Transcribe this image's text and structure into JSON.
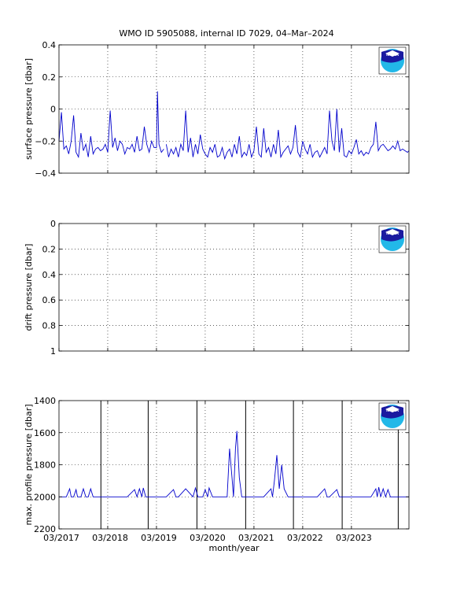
{
  "title": "WMO ID 5905088, internal ID 7029, 04–Mar–2024",
  "logo_text": "NOAA",
  "colors": {
    "series": "#0000cc",
    "axis": "#000000",
    "grid": "#000000",
    "logo_blue": "#1a1aa0",
    "logo_light": "#22b8e8"
  },
  "chart_data": [
    {
      "type": "line",
      "ylabel": "surface pressure [dbar]",
      "ylim": [
        -0.4,
        0.4
      ],
      "yticks": [
        "−0.4",
        "−0.2",
        "0",
        "0.2",
        "0.4"
      ],
      "ytick_values": [
        -0.4,
        -0.2,
        0,
        0.2,
        0.4
      ],
      "y_reversed": false,
      "grid": true,
      "series": [
        {
          "x": [
            2017.0,
            2017.05,
            2017.1,
            2017.15,
            2017.2,
            2017.25,
            2017.3,
            2017.35,
            2017.4,
            2017.45,
            2017.5,
            2017.55,
            2017.6,
            2017.65,
            2017.7,
            2017.75,
            2017.8,
            2017.85,
            2017.9,
            2017.95,
            2018.0,
            2018.05,
            2018.1,
            2018.15,
            2018.2,
            2018.25,
            2018.3,
            2018.35,
            2018.4,
            2018.45,
            2018.5,
            2018.55,
            2018.6,
            2018.65,
            2018.7,
            2018.75,
            2018.8,
            2018.85,
            2018.9,
            2018.95,
            2019.0,
            2019.02,
            2019.05,
            2019.1,
            2019.15
          ],
          "y": [
            -0.2,
            -0.02,
            -0.25,
            -0.23,
            -0.28,
            -0.2,
            -0.04,
            -0.27,
            -0.3,
            -0.15,
            -0.26,
            -0.22,
            -0.3,
            -0.17,
            -0.28,
            -0.25,
            -0.24,
            -0.26,
            -0.25,
            -0.22,
            -0.27,
            -0.01,
            -0.24,
            -0.18,
            -0.26,
            -0.2,
            -0.22,
            -0.28,
            -0.24,
            -0.25,
            -0.22,
            -0.27,
            -0.17,
            -0.26,
            -0.25,
            -0.11,
            -0.22,
            -0.27,
            -0.2,
            -0.24,
            -0.24,
            0.11,
            -0.22,
            -0.27,
            -0.25
          ]
        },
        {
          "x": [
            2019.2,
            2019.25,
            2019.3,
            2019.35,
            2019.4,
            2019.45,
            2019.5,
            2019.55,
            2019.6,
            2019.65,
            2019.7,
            2019.75,
            2019.8,
            2019.85,
            2019.9,
            2019.95,
            2020.0,
            2020.05,
            2020.1,
            2020.15,
            2020.2,
            2020.25,
            2020.3,
            2020.35,
            2020.4,
            2020.45,
            2020.5,
            2020.55,
            2020.6,
            2020.65,
            2020.7,
            2020.75,
            2020.8,
            2020.85,
            2020.9,
            2020.95,
            2021.0,
            2021.05,
            2021.1,
            2021.15,
            2021.2,
            2021.25,
            2021.3,
            2021.35,
            2021.4,
            2021.45,
            2021.5,
            2021.55,
            2021.6,
            2021.65,
            2021.7,
            2021.75,
            2021.8,
            2021.85,
            2021.9,
            2021.95,
            2022.0,
            2022.05,
            2022.1,
            2022.15,
            2022.2,
            2022.25,
            2022.3,
            2022.35,
            2022.4,
            2022.45,
            2022.5,
            2022.55,
            2022.6,
            2022.65,
            2022.7,
            2022.75,
            2022.8,
            2022.85,
            2022.9,
            2022.95,
            2023.0,
            2023.05,
            2023.1,
            2023.15,
            2023.2,
            2023.25,
            2023.3,
            2023.35,
            2023.4,
            2023.45,
            2023.5,
            2023.55,
            2023.6,
            2023.65,
            2023.7,
            2023.75,
            2023.8,
            2023.85,
            2023.9,
            2023.95,
            2024.0,
            2024.05,
            2024.1,
            2024.15,
            2024.18
          ],
          "y": [
            -0.22,
            -0.3,
            -0.25,
            -0.28,
            -0.24,
            -0.3,
            -0.22,
            -0.26,
            -0.01,
            -0.27,
            -0.18,
            -0.3,
            -0.22,
            -0.28,
            -0.16,
            -0.25,
            -0.28,
            -0.3,
            -0.24,
            -0.27,
            -0.22,
            -0.3,
            -0.29,
            -0.24,
            -0.31,
            -0.27,
            -0.25,
            -0.3,
            -0.22,
            -0.28,
            -0.17,
            -0.3,
            -0.27,
            -0.29,
            -0.22,
            -0.3,
            -0.26,
            -0.11,
            -0.28,
            -0.3,
            -0.12,
            -0.27,
            -0.24,
            -0.3,
            -0.22,
            -0.28,
            -0.13,
            -0.3,
            -0.27,
            -0.25,
            -0.23,
            -0.28,
            -0.24,
            -0.1,
            -0.27,
            -0.3,
            -0.2,
            -0.25,
            -0.28,
            -0.22,
            -0.3,
            -0.27,
            -0.26,
            -0.3,
            -0.27,
            -0.24,
            -0.28,
            -0.01,
            -0.2,
            -0.26,
            0.0,
            -0.27,
            -0.12,
            -0.29,
            -0.3,
            -0.26,
            -0.28,
            -0.24,
            -0.19,
            -0.28,
            -0.26,
            -0.29,
            -0.27,
            -0.28,
            -0.24,
            -0.22,
            -0.08,
            -0.26,
            -0.23,
            -0.22,
            -0.24,
            -0.26,
            -0.25,
            -0.23,
            -0.25,
            -0.2,
            -0.26,
            -0.25,
            -0.26,
            -0.27,
            -0.26
          ]
        }
      ]
    },
    {
      "type": "line",
      "ylabel": "drift pressure [dbar]",
      "ylim": [
        0,
        1
      ],
      "yticks": [
        "0",
        "0.2",
        "0.4",
        "0.6",
        "0.8",
        "1"
      ],
      "ytick_values": [
        0,
        0.2,
        0.4,
        0.6,
        0.8,
        1
      ],
      "y_reversed": true,
      "grid": true,
      "series": []
    },
    {
      "type": "line",
      "ylabel": "max. profile pressure [dbar]",
      "xlabel": "month/year",
      "ylim": [
        1400,
        2200
      ],
      "yticks": [
        "1400",
        "1600",
        "1800",
        "2000",
        "2200"
      ],
      "ytick_values": [
        1400,
        1600,
        1800,
        2000,
        2200
      ],
      "y_reversed": true,
      "grid": true,
      "vertical_lines_x": [
        2017.86,
        2018.83,
        2019.83,
        2020.83,
        2021.81,
        2022.81,
        2023.96
      ],
      "series": [
        {
          "x": [
            2017.0,
            2017.15,
            2017.22,
            2017.25,
            2017.3,
            2017.35,
            2017.38,
            2017.45,
            2017.5,
            2017.55,
            2017.6,
            2017.65,
            2017.7,
            2017.8,
            2017.9,
            2018.0,
            2018.2,
            2018.4,
            2018.55,
            2018.6,
            2018.65,
            2018.7,
            2018.73,
            2018.78,
            2018.85,
            2019.0,
            2019.2,
            2019.35,
            2019.4,
            2019.45,
            2019.6,
            2019.75,
            2019.8,
            2019.85,
            2019.95,
            2020.0,
            2020.05,
            2020.08,
            2020.15,
            2020.3,
            2020.45,
            2020.5,
            2020.55,
            2020.58,
            2020.62,
            2020.65,
            2020.7,
            2020.75,
            2020.8,
            2021.0,
            2021.2,
            2021.35,
            2021.38,
            2021.42,
            2021.47,
            2021.52,
            2021.57,
            2021.62,
            2021.7,
            2022.0,
            2022.3,
            2022.45,
            2022.5,
            2022.55,
            2022.7,
            2022.75,
            2022.8,
            2022.9,
            2023.1,
            2023.4,
            2023.5,
            2023.53,
            2023.56,
            2023.6,
            2023.65,
            2023.7,
            2023.75,
            2023.8,
            2023.9,
            2024.0,
            2024.18
          ],
          "y": [
            2000,
            2000,
            1950,
            2000,
            2000,
            1955,
            2000,
            2000,
            1950,
            2000,
            2000,
            1950,
            2000,
            2000,
            2000,
            2000,
            2000,
            2000,
            1955,
            2000,
            1950,
            2000,
            1945,
            2000,
            2000,
            2000,
            2000,
            1955,
            2000,
            2000,
            1950,
            2000,
            1945,
            2000,
            2000,
            1955,
            2000,
            1945,
            2000,
            2000,
            2000,
            1700,
            1880,
            2000,
            1700,
            1590,
            1880,
            2000,
            2000,
            2000,
            2000,
            1950,
            2000,
            1900,
            1740,
            1950,
            1800,
            1950,
            2000,
            2000,
            2000,
            1950,
            2000,
            2000,
            1955,
            2000,
            2000,
            2000,
            2000,
            2000,
            1950,
            2000,
            1940,
            2000,
            1950,
            2000,
            1955,
            2000,
            2000,
            2000,
            2000
          ]
        }
      ]
    }
  ],
  "x_axis": {
    "xlim": [
      2017.0,
      2024.18
    ],
    "tick_values": [
      2017.0,
      2018.0,
      2019.0,
      2020.0,
      2021.0,
      2022.0,
      2023.0
    ],
    "tick_labels": [
      "03/2017",
      "03/2018",
      "03/2019",
      "03/2020",
      "03/2021",
      "03/2022",
      "03/2023"
    ]
  }
}
